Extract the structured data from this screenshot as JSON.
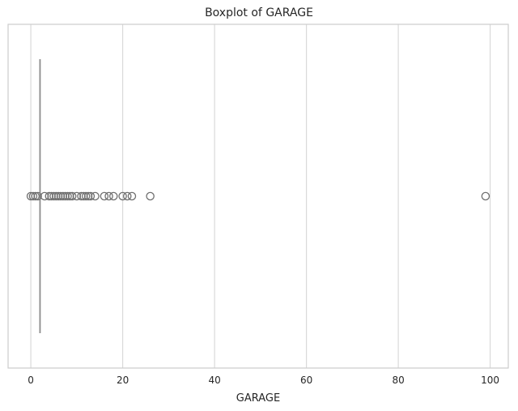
{
  "chart_data": {
    "type": "boxplot",
    "orientation": "horizontal",
    "title": "Boxplot of GARAGE",
    "xlabel": "GARAGE",
    "ylabel": "",
    "xlim": [
      -4.95,
      103.95
    ],
    "x_ticks": [
      0,
      20,
      40,
      60,
      80,
      100
    ],
    "grid": "vertical",
    "box": {
      "min": 2,
      "q1": 2,
      "median": 2,
      "q3": 2,
      "max": 2
    },
    "outliers": [
      0,
      0.5,
      1,
      1.5,
      3,
      4,
      4.5,
      5,
      5.5,
      6,
      6.5,
      7,
      7.5,
      8,
      8.5,
      9,
      10,
      11,
      11.5,
      12,
      12.5,
      13,
      14,
      16,
      17,
      18,
      20,
      21,
      22,
      26,
      99
    ],
    "colors": {
      "box": "#8c8c8c",
      "grid": "#d9d9d9",
      "frame": "#cccccc"
    }
  }
}
